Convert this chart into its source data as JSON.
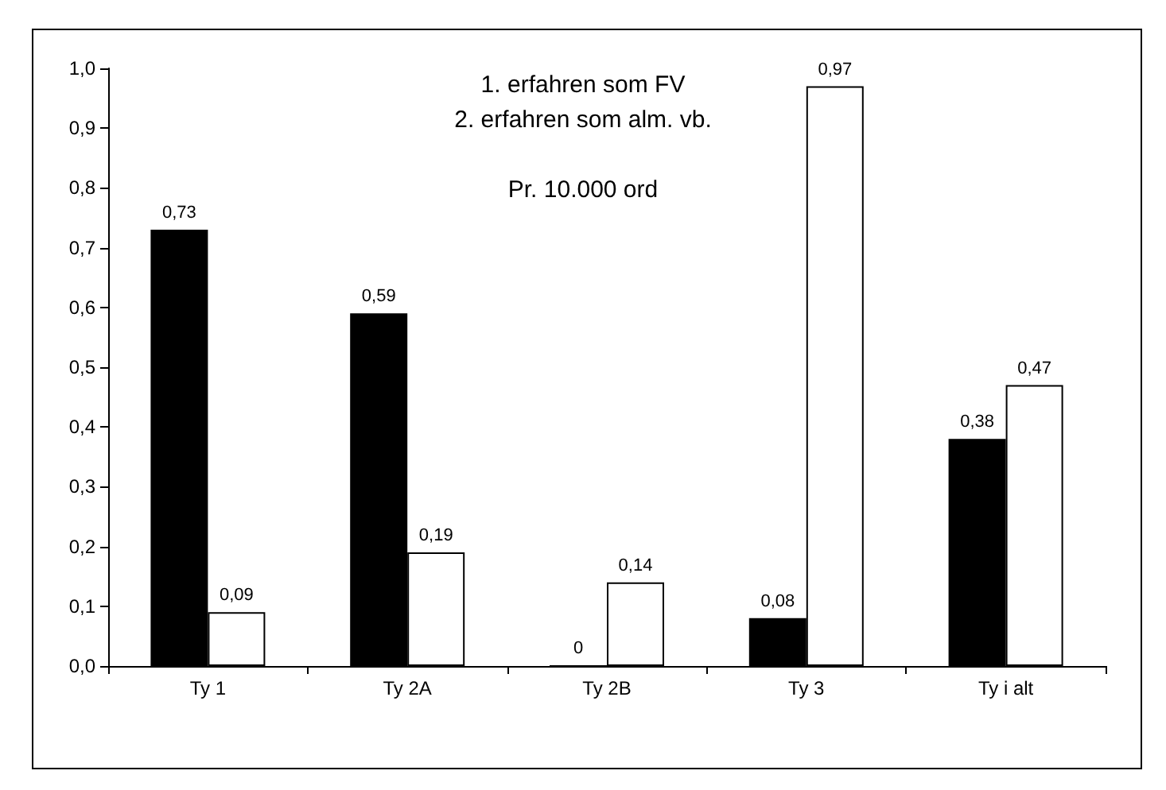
{
  "chart_data": {
    "type": "bar",
    "annotations": [
      "1. erfahren som FV",
      "2. erfahren som alm. vb.",
      "Pr. 10.000 ord"
    ],
    "categories": [
      "Ty 1",
      "Ty 2A",
      "Ty 2B",
      "Ty 3",
      "Ty i alt"
    ],
    "series": [
      {
        "color": "#000000",
        "values": [
          0.73,
          0.59,
          0,
          0.08,
          0.38
        ],
        "value_labels": [
          "0,73",
          "0,59",
          "0",
          "0,08",
          "0,38"
        ]
      },
      {
        "color": "#ffffff",
        "values": [
          0.09,
          0.19,
          0.14,
          0.97,
          0.47
        ],
        "value_labels": [
          "0,09",
          "0,19",
          "0,14",
          "0,97",
          "0,47"
        ]
      }
    ],
    "ylim": [
      0,
      1
    ],
    "yticks": [
      {
        "value": 0,
        "label": "0,0"
      },
      {
        "value": 0.1,
        "label": "0,1"
      },
      {
        "value": 0.2,
        "label": "0,2"
      },
      {
        "value": 0.3,
        "label": "0,3"
      },
      {
        "value": 0.4,
        "label": "0,4"
      },
      {
        "value": 0.5,
        "label": "0,5"
      },
      {
        "value": 0.6,
        "label": "0,6"
      },
      {
        "value": 0.7,
        "label": "0,7"
      },
      {
        "value": 0.8,
        "label": "0,8"
      },
      {
        "value": 0.9,
        "label": "0,9"
      },
      {
        "value": 1,
        "label": "1,0"
      }
    ],
    "grid": false
  }
}
